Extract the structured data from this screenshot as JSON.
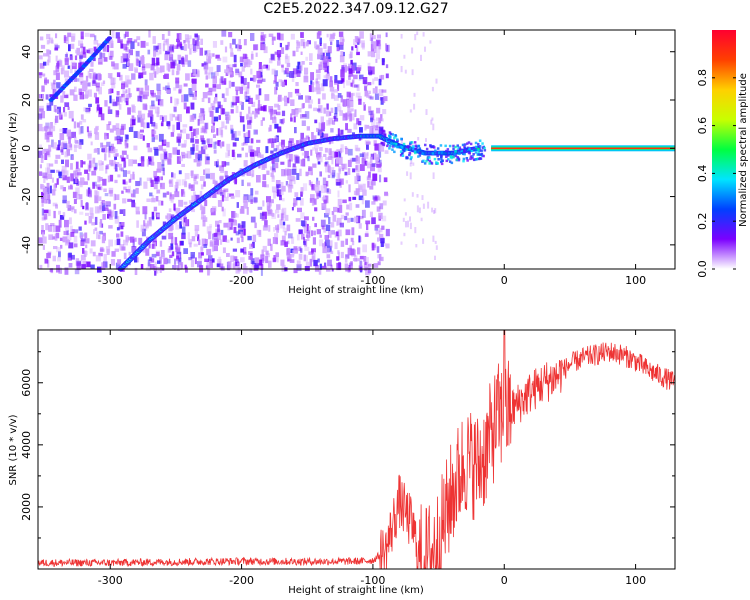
{
  "figure": {
    "title": "C2E5.2022.347.09.12.G27"
  },
  "colorbar": {
    "label": "Normalized spectral amplitude",
    "ticks": [
      "0.0",
      "0.2",
      "0.4",
      "0.6",
      "0.8"
    ],
    "tick_values": [
      0.0,
      0.2,
      0.4,
      0.6,
      0.8
    ],
    "range": [
      0,
      1
    ],
    "colormap": [
      "#ffffff",
      "#7b00ff",
      "#0040ff",
      "#00e5ff",
      "#00ff40",
      "#c8ff00",
      "#ffd000",
      "#ff4000",
      "#ff0030"
    ]
  },
  "chart_data": [
    {
      "type": "heatmap",
      "xlabel": "Height of straight line (km)",
      "ylabel": "Frequency (Hz)",
      "xlim": [
        -355,
        130
      ],
      "ylim": [
        -50,
        49
      ],
      "xticks": [
        -300,
        -200,
        -100,
        0,
        100
      ],
      "yticks": [
        -40,
        -20,
        0,
        20,
        40
      ],
      "grid": false,
      "features": {
        "carrier_line": {
          "x_start": -10,
          "x_end": 130,
          "y": 0,
          "amplitude": 0.9
        },
        "curved_tone": [
          {
            "x": -292,
            "y": -50
          },
          {
            "x": -270,
            "y": -38
          },
          {
            "x": -250,
            "y": -29
          },
          {
            "x": -230,
            "y": -21
          },
          {
            "x": -210,
            "y": -13
          },
          {
            "x": -190,
            "y": -7
          },
          {
            "x": -170,
            "y": -2
          },
          {
            "x": -150,
            "y": 2
          },
          {
            "x": -130,
            "y": 4
          },
          {
            "x": -110,
            "y": 5
          },
          {
            "x": -95,
            "y": 5
          },
          {
            "x": -80,
            "y": 1
          },
          {
            "x": -60,
            "y": -2
          },
          {
            "x": -40,
            "y": -2
          },
          {
            "x": -20,
            "y": 0
          }
        ],
        "upper_tone": [
          {
            "x": -345,
            "y": 20
          },
          {
            "x": -320,
            "y": 34
          },
          {
            "x": -300,
            "y": 46
          }
        ],
        "noise_x_end": -90
      }
    },
    {
      "type": "line",
      "xlabel": "Height of straight line (km)",
      "ylabel": "SNR (10 * v/v)",
      "xlim": [
        -355,
        130
      ],
      "ylim": [
        0,
        7700
      ],
      "xticks": [
        -300,
        -200,
        -100,
        0,
        100
      ],
      "yticks": [
        2000,
        4000,
        6000
      ],
      "grid": false,
      "color": "#ee3333",
      "series": [
        {
          "x": [
            -355,
            -300,
            -250,
            -200,
            -150,
            -110,
            -100,
            -90,
            -80,
            -70,
            -65,
            -60,
            -50,
            -40,
            -30,
            -20,
            -15,
            -10,
            -5,
            0,
            10,
            20,
            30,
            40,
            50,
            60,
            70,
            80,
            90,
            100,
            110,
            120,
            130
          ],
          "values": [
            200,
            200,
            230,
            250,
            240,
            250,
            280,
            600,
            2200,
            1400,
            400,
            300,
            900,
            2400,
            3500,
            3300,
            3700,
            4300,
            4900,
            4900,
            5300,
            5700,
            6000,
            6200,
            6600,
            6800,
            6900,
            7000,
            6900,
            6700,
            6400,
            6200,
            6000
          ]
        }
      ]
    }
  ]
}
